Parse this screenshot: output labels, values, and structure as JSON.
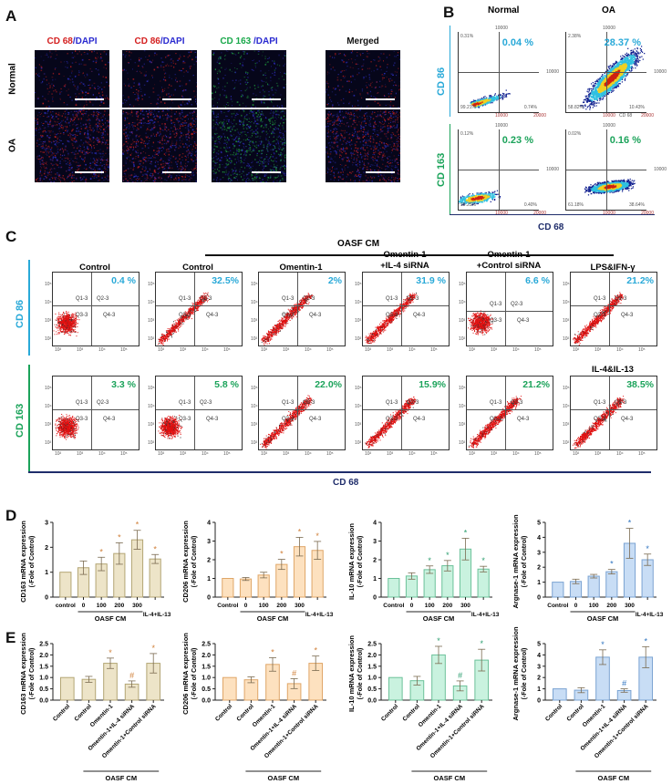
{
  "panel_labels": {
    "a": "A",
    "b": "B",
    "c": "C",
    "d": "D",
    "e": "E"
  },
  "panel_a": {
    "columns": [
      {
        "marker": "CD 68",
        "sep": "/",
        "stain": "DAPI",
        "color": "#d42020"
      },
      {
        "marker": "CD 86",
        "sep": "/",
        "stain": "DAPI",
        "color": "#d42020"
      },
      {
        "marker": "CD 163",
        "sep": " /",
        "stain": "DAPI",
        "color": "#19a84a"
      },
      {
        "marker": "",
        "sep": "",
        "stain": "Merged",
        "color": "#111111"
      }
    ],
    "dapi_color": "#2a2ad0",
    "rows": [
      "Normal",
      "OA"
    ]
  },
  "panel_b": {
    "columns": [
      "Normal",
      "OA"
    ],
    "y_labels": [
      {
        "text": "CD 86",
        "color": "#29a9d8"
      },
      {
        "text": "CD 163",
        "color": "#1ba35a"
      }
    ],
    "x_label": "CD 68",
    "x_label_color": "#1f2d6b",
    "axis_tick": "10000",
    "axis_max": "20000",
    "plots": [
      {
        "pct": "0.04 %",
        "color": "#29a9d8",
        "q1": "0.31%",
        "q3": "99.21%",
        "q4": "0.74%"
      },
      {
        "pct": "28.37 %",
        "color": "#29a9d8",
        "q1": "2.38%",
        "q3": "58.82%",
        "q4": "10.43%",
        "x_title": "CD 68"
      },
      {
        "pct": "0.23 %",
        "color": "#1ba35a",
        "q1": "0.12%",
        "q3": "99.25%",
        "q4": "0.40%"
      },
      {
        "pct": "0.16 %",
        "color": "#1ba35a",
        "q1": "0.02%",
        "q3": "61.18%",
        "q4": "38.64%"
      }
    ]
  },
  "panel_c": {
    "group_label": "OASF CM",
    "x_label": "CD 68",
    "y_labels": [
      {
        "text": "CD 86",
        "color": "#29a9d8"
      },
      {
        "text": "CD 163",
        "color": "#1ba35a"
      }
    ],
    "quadrants": [
      "Q1-3",
      "Q2-3",
      "Q3-3",
      "Q4-3"
    ],
    "ticks": [
      "10²",
      "10³",
      "10⁴",
      "10⁵"
    ],
    "titles": [
      "Control",
      "Control",
      "Omentin-1",
      "Omentin-1\n+IL-4 siRNA",
      "Omentin-1\n+Control siRNA",
      "LPS&IFN-γ"
    ],
    "row2_extra_title": "IL-4&IL-13",
    "rows": [
      {
        "color": "#29a9d8",
        "pcts": [
          "0.4 %",
          "32.5%",
          "2%",
          "31.9 %",
          "6.6 %",
          "21.2%"
        ]
      },
      {
        "color": "#1ba35a",
        "pcts": [
          "3.3 %",
          "5.8 %",
          "22.0%",
          "15.9%",
          "21.2%",
          "38.5%"
        ]
      }
    ]
  },
  "chart_data": [
    {
      "panel": "D",
      "type": "bar",
      "ylabel": "CD163 mRNA expression",
      "ylabel2": "(-Fole of Control)",
      "categories": [
        "control",
        "0",
        "100",
        "200",
        "300",
        "IL-4+IL-13"
      ],
      "values": [
        1,
        1.18,
        1.33,
        1.75,
        2.3,
        1.53
      ],
      "errors": [
        0,
        0.27,
        0.27,
        0.43,
        0.38,
        0.18
      ],
      "significance": [
        "",
        "",
        "*",
        "*",
        "*",
        "*"
      ],
      "ylim": [
        0,
        3
      ],
      "yticks": [
        0,
        1,
        2,
        3
      ],
      "group_label": "OASF CM",
      "group_span": [
        1,
        4
      ],
      "fill": "#ede4c8",
      "stroke": "#b3a574",
      "mark_color": "#d0803a"
    },
    {
      "panel": "D",
      "type": "bar",
      "ylabel": "CD206 mRNA expression",
      "ylabel2": "(-Fole of Control)",
      "categories": [
        "Control",
        "0",
        "100",
        "200",
        "300",
        "IL-4+IL-13"
      ],
      "values": [
        1,
        0.97,
        1.18,
        1.75,
        2.7,
        2.5
      ],
      "errors": [
        0,
        0.08,
        0.15,
        0.27,
        0.5,
        0.48
      ],
      "significance": [
        "",
        "",
        "",
        "*",
        "*",
        "*"
      ],
      "ylim": [
        0,
        4
      ],
      "yticks": [
        0,
        1,
        2,
        3,
        4
      ],
      "group_label": "OASF CM",
      "group_span": [
        1,
        4
      ],
      "fill": "#fde1bf",
      "stroke": "#dfa668",
      "mark_color": "#d0803a"
    },
    {
      "panel": "D",
      "type": "bar",
      "ylabel": "IL-10 mRNA expression",
      "ylabel2": "(-Fole of Control)",
      "categories": [
        "Control",
        "0",
        "100",
        "200",
        "300",
        "IL-4+IL-13"
      ],
      "values": [
        1,
        1.13,
        1.47,
        1.68,
        2.57,
        1.5
      ],
      "errors": [
        0,
        0.17,
        0.2,
        0.28,
        0.58,
        0.15
      ],
      "significance": [
        "",
        "",
        "*",
        "*",
        "*",
        "*"
      ],
      "ylim": [
        0,
        4
      ],
      "yticks": [
        0,
        1,
        2,
        3,
        4
      ],
      "group_label": "OASF CM",
      "group_span": [
        1,
        4
      ],
      "fill": "#c9f2df",
      "stroke": "#6cc19a",
      "mark_color": "#2a9d6e"
    },
    {
      "panel": "D",
      "type": "bar",
      "ylabel": "Argnase-1 mRNA expression",
      "ylabel2": "(-Fole of Control)",
      "categories": [
        "Control",
        "0",
        "100",
        "200",
        "300",
        "IL-4+IL-13"
      ],
      "values": [
        1,
        1.05,
        1.4,
        1.7,
        3.6,
        2.5
      ],
      "errors": [
        0,
        0.15,
        0.12,
        0.15,
        1.0,
        0.38
      ],
      "significance": [
        "",
        "",
        "",
        "*",
        "*",
        "*"
      ],
      "ylim": [
        0,
        5
      ],
      "yticks": [
        0,
        1,
        2,
        3,
        4,
        5
      ],
      "group_label": "OASF CM",
      "group_span": [
        1,
        4
      ],
      "fill": "#c8ddf5",
      "stroke": "#7aa3d2",
      "mark_color": "#2f74c0"
    },
    {
      "panel": "E",
      "type": "bar",
      "ylabel": "CD163 mRNA expression",
      "ylabel2": "(-Fole of Control)",
      "categories": [
        "Control",
        "Control",
        "Omentin-1",
        "Omentin-1+IL-4 siRNA",
        "Omentin-1+Control siRNA"
      ],
      "values": [
        1,
        0.92,
        1.63,
        0.71,
        1.63
      ],
      "errors": [
        0,
        0.13,
        0.23,
        0.14,
        0.43
      ],
      "significance": [
        "",
        "",
        "*",
        "#",
        "*"
      ],
      "ylim": [
        0,
        2.5
      ],
      "yticks": [
        0,
        0.5,
        1.0,
        1.5,
        2.0,
        2.5
      ],
      "group_label": "OASF CM",
      "group_span": [
        1,
        4
      ],
      "fill": "#ede4c8",
      "stroke": "#b3a574",
      "mark_color": "#d0803a"
    },
    {
      "panel": "E",
      "type": "bar",
      "ylabel": "CD206 mRNA expression",
      "ylabel2": "(-Fole of Control)",
      "categories": [
        "Control",
        "Control",
        "Omentin-1",
        "Omentin-1+IL-4 siRNA",
        "Omentin-1+Control siRNA"
      ],
      "values": [
        1,
        0.9,
        1.58,
        0.73,
        1.63
      ],
      "errors": [
        0,
        0.13,
        0.3,
        0.22,
        0.32
      ],
      "significance": [
        "",
        "",
        "*",
        "#",
        "*"
      ],
      "ylim": [
        0,
        2.5
      ],
      "yticks": [
        0,
        0.5,
        1.0,
        1.5,
        2.0,
        2.5
      ],
      "group_label": "OASF CM",
      "group_span": [
        1,
        4
      ],
      "fill": "#fde1bf",
      "stroke": "#dfa668",
      "mark_color": "#d0803a"
    },
    {
      "panel": "E",
      "type": "bar",
      "ylabel": "IL-10 mRNA expression",
      "ylabel2": "(-Fole of Control)",
      "categories": [
        "Control",
        "Control",
        "Omentin-1",
        "Omentin-1+IL-4 siRNA",
        "Omentin-1+Control siRNA"
      ],
      "values": [
        1,
        0.86,
        2.0,
        0.63,
        1.77
      ],
      "errors": [
        0,
        0.19,
        0.38,
        0.22,
        0.48
      ],
      "significance": [
        "",
        "",
        "*",
        "#",
        "*"
      ],
      "ylim": [
        0,
        2.5
      ],
      "yticks": [
        0,
        0.5,
        1.0,
        1.5,
        2.0,
        2.5
      ],
      "group_label": "OASF CM",
      "group_span": [
        1,
        4
      ],
      "fill": "#c9f2df",
      "stroke": "#6cc19a",
      "mark_color": "#2a9d6e"
    },
    {
      "panel": "E",
      "type": "bar",
      "ylabel": "Argnase-1 mRNA expression",
      "ylabel2": "(-Fole of Control)",
      "categories": [
        "Control",
        "Control",
        "Omentin-1",
        "Omentin-1+IL-4 siRNA",
        "Omentin-1+Control siRNA"
      ],
      "values": [
        1,
        0.88,
        3.8,
        0.85,
        3.8
      ],
      "errors": [
        0,
        0.22,
        0.65,
        0.15,
        0.93
      ],
      "significance": [
        "",
        "",
        "*",
        "#",
        "*"
      ],
      "ylim": [
        0,
        5
      ],
      "yticks": [
        0,
        1,
        2,
        3,
        4,
        5
      ],
      "group_label": "OASF CM",
      "group_span": [
        1,
        4
      ],
      "fill": "#c8ddf5",
      "stroke": "#7aa3d2",
      "mark_color": "#2f74c0"
    }
  ]
}
